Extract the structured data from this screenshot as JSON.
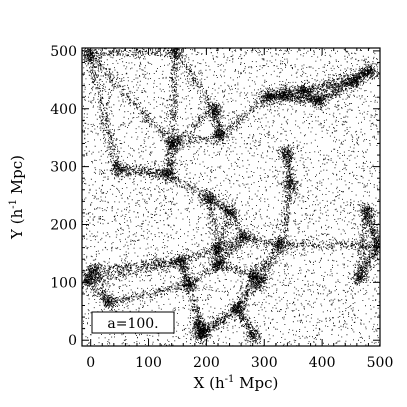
{
  "chart_data": {
    "type": "scatter",
    "title": "",
    "xlabel": "X (h",
    "xlabel_sup": "-1",
    "xlabel_tail": " Mpc)",
    "ylabel": "Y (h",
    "ylabel_sup": "-1",
    "ylabel_tail": " Mpc)",
    "xlim": [
      -15,
      500
    ],
    "ylim": [
      -10,
      505
    ],
    "x_ticks": [
      "0",
      "100",
      "200",
      "300",
      "400",
      "500"
    ],
    "x_tick_values": [
      0,
      100,
      200,
      300,
      400,
      500
    ],
    "y_ticks": [
      "0",
      "100",
      "200",
      "300",
      "400",
      "500"
    ],
    "y_tick_values": [
      0,
      100,
      200,
      300,
      400,
      500
    ],
    "annotation": "a=100.",
    "point_color": "#000000",
    "background_color": "#ffffff",
    "grid": false,
    "legend": "none"
  }
}
